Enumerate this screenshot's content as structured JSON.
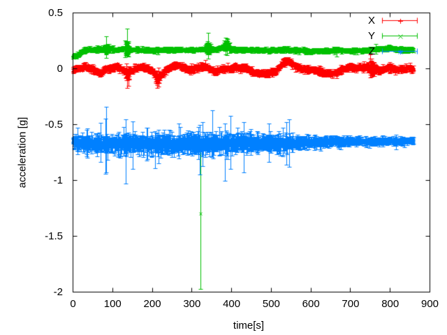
{
  "chart_data": {
    "type": "scatter-errorbars",
    "title": "",
    "xlabel": "time[s]",
    "ylabel": "acceleration [g]",
    "xlim": [
      0,
      900
    ],
    "ylim": [
      -2,
      0.5
    ],
    "xticks": [
      0,
      100,
      200,
      300,
      400,
      500,
      600,
      700,
      800,
      900
    ],
    "yticks": [
      -2,
      -1.5,
      -1,
      -0.5,
      0,
      0.5
    ],
    "background": "#ffffff",
    "axis_color": "#000000",
    "legend": {
      "position": "top-right",
      "entries": [
        {
          "label": "X",
          "color": "#ff0000",
          "marker": "plus"
        },
        {
          "label": "Y",
          "color": "#00c000",
          "marker": "cross"
        },
        {
          "label": "Z",
          "color": "#0080ff",
          "marker": "star"
        }
      ]
    },
    "series": [
      {
        "name": "X",
        "color": "#ff0000",
        "marker": "plus",
        "seed": 101,
        "t_start": 0,
        "t_end": 858,
        "dt": 0.5,
        "noise_sd": 0.012,
        "err_base": 0.005,
        "err_scale": 0.009,
        "spike_prob": 0.015,
        "spike_mult": 1.8,
        "spike2_prob": 0.002,
        "spike2_mult": 2.5,
        "spike_range": [
          0,
          858
        ],
        "baseline": [
          [
            0,
            -0.015
          ],
          [
            10,
            0
          ],
          [
            20,
            0.01
          ],
          [
            30,
            0.02
          ],
          [
            45,
            0
          ],
          [
            55,
            -0.02
          ],
          [
            68,
            -0.045
          ],
          [
            80,
            -0.01
          ],
          [
            95,
            0.01
          ],
          [
            110,
            0.02
          ],
          [
            125,
            0
          ],
          [
            137,
            -0.055
          ],
          [
            148,
            -0.02
          ],
          [
            160,
            0.01
          ],
          [
            175,
            0.025
          ],
          [
            190,
            0
          ],
          [
            203,
            -0.03
          ],
          [
            212,
            -0.09
          ],
          [
            222,
            -0.06
          ],
          [
            235,
            -0.01
          ],
          [
            250,
            0.02
          ],
          [
            265,
            0.03
          ],
          [
            280,
            0.01
          ],
          [
            295,
            -0.01
          ],
          [
            310,
            0.005
          ],
          [
            325,
            0.02
          ],
          [
            340,
            0.01
          ],
          [
            348,
            -0.01
          ],
          [
            358,
            -0.025
          ],
          [
            368,
            -0.015
          ],
          [
            380,
            0
          ],
          [
            395,
            0.005
          ],
          [
            410,
            0.01
          ],
          [
            425,
            0.01
          ],
          [
            440,
            0
          ],
          [
            455,
            -0.03
          ],
          [
            470,
            -0.04
          ],
          [
            488,
            -0.045
          ],
          [
            505,
            -0.03
          ],
          [
            518,
            0.005
          ],
          [
            530,
            0.06
          ],
          [
            542,
            0.065
          ],
          [
            552,
            0.045
          ],
          [
            565,
            0.015
          ],
          [
            580,
            -0.005
          ],
          [
            600,
            -0.01
          ],
          [
            615,
            -0.015
          ],
          [
            630,
            -0.03
          ],
          [
            645,
            -0.045
          ],
          [
            660,
            -0.04
          ],
          [
            672,
            -0.02
          ],
          [
            685,
            0.005
          ],
          [
            700,
            0.02
          ],
          [
            712,
            0.01
          ],
          [
            725,
            0.015
          ],
          [
            740,
            0.02
          ],
          [
            752,
            0.005
          ],
          [
            765,
            -0.005
          ],
          [
            778,
            -0.01
          ],
          [
            790,
            0.01
          ],
          [
            802,
            0.005
          ],
          [
            815,
            -0.005
          ],
          [
            828,
            0
          ],
          [
            840,
            0.005
          ],
          [
            852,
            0
          ],
          [
            858,
            -0.005
          ]
        ],
        "err_boost": [
          [
            133,
            142,
            3
          ],
          [
            208,
            218,
            2.5
          ],
          [
            744,
            760,
            3
          ]
        ],
        "outliers": [
          {
            "t": 137,
            "y": -0.07,
            "lo": -0.17,
            "hi": 0.0
          },
          {
            "t": 139.5,
            "y": -0.06,
            "lo": -0.15,
            "hi": 0.02
          },
          {
            "t": 212,
            "y": -0.1,
            "lo": -0.17,
            "hi": -0.03
          },
          {
            "t": 215,
            "y": -0.09,
            "lo": -0.16,
            "hi": -0.02
          },
          {
            "t": 750,
            "y": 0.02,
            "lo": -0.08,
            "hi": 0.09
          },
          {
            "t": 753,
            "y": 0.0,
            "lo": -0.07,
            "hi": 0.07
          }
        ]
      },
      {
        "name": "Y",
        "color": "#00c000",
        "marker": "cross",
        "seed": 202,
        "t_start": 0,
        "t_end": 858,
        "dt": 0.5,
        "noise_sd": 0.0065,
        "err_base": 0.006,
        "err_scale": 0.007,
        "spike_prob": 0.012,
        "spike_mult": 1.8,
        "spike_range": [
          0,
          858
        ],
        "baseline": [
          [
            0,
            0.105
          ],
          [
            6,
            0.11
          ],
          [
            12,
            0.12
          ],
          [
            18,
            0.14
          ],
          [
            25,
            0.16
          ],
          [
            35,
            0.17
          ],
          [
            60,
            0.175
          ],
          [
            85,
            0.18
          ],
          [
            110,
            0.175
          ],
          [
            135,
            0.18
          ],
          [
            160,
            0.17
          ],
          [
            185,
            0.165
          ],
          [
            210,
            0.165
          ],
          [
            240,
            0.17
          ],
          [
            270,
            0.17
          ],
          [
            300,
            0.17
          ],
          [
            320,
            0.175
          ],
          [
            341,
            0.185
          ],
          [
            360,
            0.17
          ],
          [
            380,
            0.2
          ],
          [
            388,
            0.215
          ],
          [
            400,
            0.175
          ],
          [
            420,
            0.17
          ],
          [
            450,
            0.17
          ],
          [
            480,
            0.165
          ],
          [
            510,
            0.17
          ],
          [
            540,
            0.17
          ],
          [
            570,
            0.165
          ],
          [
            600,
            0.16
          ],
          [
            630,
            0.16
          ],
          [
            660,
            0.165
          ],
          [
            690,
            0.16
          ],
          [
            720,
            0.165
          ],
          [
            750,
            0.168
          ],
          [
            768,
            0.178
          ],
          [
            788,
            0.185
          ],
          [
            806,
            0.18
          ],
          [
            822,
            0.172
          ],
          [
            840,
            0.17
          ],
          [
            858,
            0.168
          ]
        ],
        "err_boost": [
          [
            80,
            90,
            3
          ],
          [
            132,
            140,
            4
          ],
          [
            336,
            346,
            3
          ],
          [
            380,
            395,
            2.5
          ]
        ],
        "outliers": [
          {
            "t": 84,
            "y": 0.19,
            "lo": 0.1,
            "hi": 0.29
          },
          {
            "t": 136,
            "y": 0.18,
            "lo": 0.155,
            "hi": 0.36
          },
          {
            "t": 321,
            "y": -1.297,
            "lo": -1.97,
            "hi": -0.74
          },
          {
            "t": 341,
            "y": 0.19,
            "lo": 0.09,
            "hi": 0.32
          },
          {
            "t": 385,
            "y": 0.22,
            "lo": 0.13,
            "hi": 0.28
          },
          {
            "t": 389,
            "y": 0.21,
            "lo": 0.12,
            "hi": 0.27
          }
        ]
      },
      {
        "name": "Z",
        "color": "#0080ff",
        "marker": "star",
        "seed": 303,
        "t_start": 0,
        "t_end": 858,
        "dt": 0.5,
        "noise_sd": 0.016,
        "err_base": 0.011,
        "err_scale": 0.035,
        "spike_prob": 0.04,
        "spike_mult": 1.6,
        "spike2_prob": 0.004,
        "spike2_mult": 2.8,
        "spike_range": [
          0,
          570
        ],
        "baseline": [
          [
            0,
            -0.655
          ],
          [
            30,
            -0.67
          ],
          [
            60,
            -0.675
          ],
          [
            100,
            -0.675
          ],
          [
            150,
            -0.67
          ],
          [
            200,
            -0.675
          ],
          [
            250,
            -0.675
          ],
          [
            300,
            -0.67
          ],
          [
            350,
            -0.672
          ],
          [
            400,
            -0.67
          ],
          [
            450,
            -0.668
          ],
          [
            500,
            -0.665
          ],
          [
            550,
            -0.665
          ],
          [
            600,
            -0.658
          ],
          [
            650,
            -0.652
          ],
          [
            700,
            -0.65
          ],
          [
            750,
            -0.65
          ],
          [
            800,
            -0.648
          ],
          [
            858,
            -0.645
          ]
        ],
        "spread": [
          [
            0,
            0.7
          ],
          [
            30,
            0.95
          ],
          [
            80,
            1.05
          ],
          [
            150,
            1.1
          ],
          [
            250,
            1.15
          ],
          [
            330,
            1.12
          ],
          [
            400,
            1.05
          ],
          [
            480,
            1.0
          ],
          [
            540,
            0.95
          ],
          [
            580,
            0.75
          ],
          [
            620,
            0.65
          ],
          [
            680,
            0.58
          ],
          [
            740,
            0.52
          ],
          [
            800,
            0.45
          ],
          [
            858,
            0.42
          ]
        ],
        "outliers": [
          {
            "t": 84,
            "y": -0.63,
            "lo": -0.93,
            "hi": -0.34
          },
          {
            "t": 133,
            "y": -0.66,
            "lo": -1.03,
            "hi": -0.45
          },
          {
            "t": 150,
            "y": -0.68,
            "lo": -0.9,
            "hi": -0.47
          },
          {
            "t": 320,
            "y": -0.7,
            "lo": -0.95,
            "hi": -0.5
          },
          {
            "t": 327,
            "y": -0.66,
            "lo": -0.87,
            "hi": -0.48
          },
          {
            "t": 351,
            "y": -0.62,
            "lo": -0.79,
            "hi": -0.37
          },
          {
            "t": 383,
            "y": -0.68,
            "lo": -1.0,
            "hi": -0.49
          },
          {
            "t": 397,
            "y": -0.65,
            "lo": -0.9,
            "hi": -0.42
          },
          {
            "t": 430,
            "y": -0.67,
            "lo": -0.93,
            "hi": -0.48
          },
          {
            "t": 545,
            "y": -0.66,
            "lo": -0.88,
            "hi": -0.45
          },
          {
            "t": 814,
            "y": -0.65,
            "lo": -0.72,
            "hi": -0.59
          }
        ]
      }
    ]
  }
}
